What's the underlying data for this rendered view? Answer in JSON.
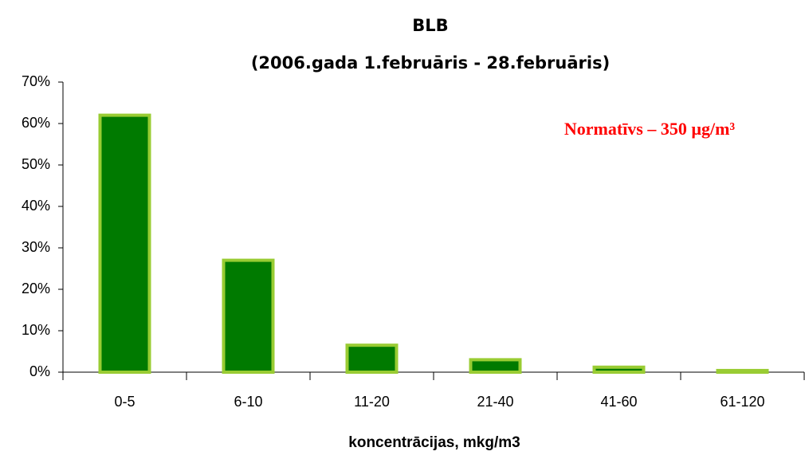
{
  "chart_data": {
    "type": "bar",
    "title": "BLB",
    "subtitle": "(2006.gada 1.februāris - 28.februāris)",
    "x_label": "koncentrācijas, mkg/m3",
    "annotation": "Normatīvs – 350 µg/m³",
    "categories": [
      "0-5",
      "6-10",
      "11-20",
      "21-40",
      "41-60",
      "61-120"
    ],
    "values": [
      62,
      27,
      6.5,
      3,
      1.2,
      0.4
    ],
    "color": "#007a00",
    "edge_color": "#99cc33",
    "ylim": [
      0,
      70
    ],
    "yticks": [
      {
        "value": 0,
        "label": "0%"
      },
      {
        "value": 10,
        "label": "10%"
      },
      {
        "value": 20,
        "label": "20%"
      },
      {
        "value": 30,
        "label": "30%"
      },
      {
        "value": 40,
        "label": "40%"
      },
      {
        "value": 50,
        "label": "50%"
      },
      {
        "value": 60,
        "label": "60%"
      },
      {
        "value": 70,
        "label": "70%"
      }
    ],
    "grid": false
  }
}
